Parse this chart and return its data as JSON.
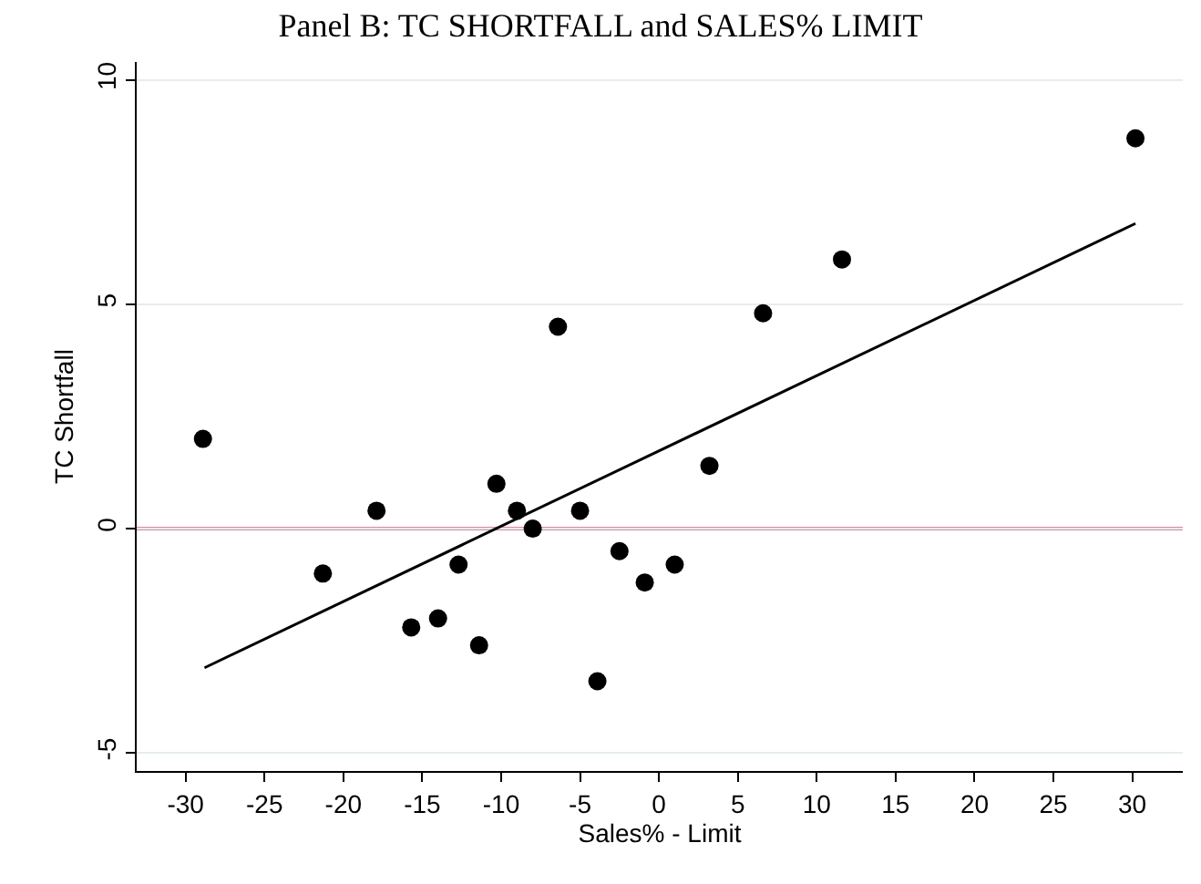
{
  "chart_data": {
    "type": "scatter",
    "title": "Panel B: TC SHORTFALL and SALES% LIMIT",
    "xlabel": "Sales% - Limit",
    "ylabel": "TC Shortfall",
    "series": [
      {
        "color": "#000000",
        "marker": "circle",
        "x": [
          -28.9,
          -21.3,
          -17.9,
          -15.7,
          -14.0,
          -12.7,
          -11.4,
          -10.3,
          -9.0,
          -8.0,
          -6.4,
          -5.0,
          -3.9,
          -2.5,
          -0.9,
          1.0,
          3.2,
          6.6,
          11.6,
          30.2
        ],
        "values": [
          2.0,
          -1.0,
          0.4,
          -2.2,
          -2.0,
          -0.8,
          -2.6,
          1.0,
          0.4,
          0.0,
          4.5,
          0.4,
          -3.4,
          -0.5,
          -1.2,
          -0.8,
          1.4,
          4.8,
          6.0,
          8.7
        ]
      },
      {
        "type": "line",
        "color": "#000000",
        "line_style": "solid",
        "x": [
          -28.8,
          30.2
        ],
        "values": [
          -3.1,
          6.8
        ]
      }
    ],
    "ref_lines": [
      {
        "axis": "y",
        "value": 0,
        "color": "#b5123a"
      }
    ],
    "xlim": [
      -33.1,
      33.2
    ],
    "xticks": [
      -30,
      -25,
      -20,
      -15,
      -10,
      -5,
      0,
      5,
      10,
      15,
      20,
      25,
      30
    ],
    "ylim": [
      -5.4,
      10.4
    ],
    "yticks": [
      -5,
      0,
      5,
      10
    ],
    "grid": "y"
  }
}
